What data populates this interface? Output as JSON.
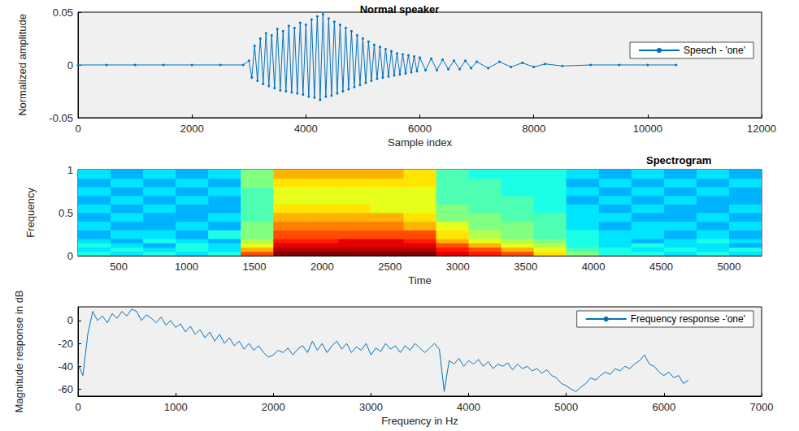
{
  "chart_data": [
    {
      "type": "line",
      "title": "Normal speaker",
      "x_label": "Sample index",
      "y_label": "Normalized amplitude",
      "xlim": [
        0,
        12000
      ],
      "xticks": [
        0,
        2000,
        4000,
        6000,
        8000,
        10000,
        12000
      ],
      "ylim": [
        -0.05,
        0.05
      ],
      "yticks": [
        -0.05,
        0,
        0.05
      ],
      "grid": false,
      "legend": "upper right",
      "series": [
        {
          "name": "Speech - 'one'",
          "color": "#0072bd",
          "marker": "circle",
          "x": [
            0,
            500,
            1000,
            1500,
            2000,
            2500,
            2900,
            3000,
            3050,
            3100,
            3150,
            3200,
            3250,
            3300,
            3350,
            3400,
            3450,
            3500,
            3550,
            3600,
            3650,
            3700,
            3750,
            3800,
            3850,
            3900,
            3950,
            4000,
            4050,
            4100,
            4150,
            4200,
            4250,
            4300,
            4350,
            4400,
            4450,
            4500,
            4550,
            4600,
            4650,
            4700,
            4750,
            4800,
            4850,
            4900,
            4950,
            5000,
            5050,
            5100,
            5150,
            5200,
            5250,
            5300,
            5350,
            5400,
            5450,
            5500,
            5550,
            5600,
            5650,
            5700,
            5750,
            5800,
            5850,
            5900,
            5950,
            6000,
            6100,
            6200,
            6300,
            6400,
            6500,
            6600,
            6700,
            6800,
            6900,
            7000,
            7200,
            7400,
            7600,
            7800,
            8000,
            8200,
            8500,
            9000,
            9500,
            10000,
            10500
          ],
          "values": [
            0,
            0,
            0,
            0,
            0,
            0,
            0,
            0.004,
            -0.012,
            0.018,
            -0.015,
            0.025,
            -0.018,
            0.03,
            -0.02,
            0.028,
            -0.022,
            0.034,
            -0.024,
            0.032,
            -0.025,
            0.037,
            -0.026,
            0.035,
            -0.027,
            0.04,
            -0.028,
            0.038,
            -0.03,
            0.043,
            -0.031,
            0.046,
            -0.033,
            0.048,
            -0.03,
            0.044,
            -0.029,
            0.041,
            -0.027,
            0.038,
            -0.025,
            0.035,
            -0.023,
            0.032,
            -0.021,
            0.028,
            -0.019,
            0.025,
            -0.017,
            0.022,
            -0.015,
            0.019,
            -0.013,
            0.017,
            -0.012,
            0.015,
            -0.011,
            0.013,
            -0.01,
            0.011,
            -0.009,
            0.01,
            -0.008,
            0.009,
            -0.007,
            0.008,
            -0.006,
            0.007,
            -0.005,
            0.006,
            -0.005,
            0.005,
            -0.004,
            0.004,
            -0.004,
            0.004,
            -0.003,
            0.003,
            -0.003,
            0.003,
            -0.002,
            0.002,
            -0.002,
            0.001,
            -0.001,
            0,
            0,
            0,
            0
          ]
        }
      ]
    },
    {
      "type": "heatmap",
      "title": "Spectrogram",
      "x_label": "Time",
      "y_label": "Frequency",
      "xlim": [
        200,
        5240
      ],
      "xticks": [
        500,
        1000,
        1500,
        2000,
        2500,
        3000,
        3500,
        4000,
        4500,
        5000
      ],
      "ylim": [
        0,
        1
      ],
      "yticks": [
        0,
        0.5,
        1
      ],
      "time_edges": [
        200,
        440,
        680,
        920,
        1160,
        1400,
        1640,
        1880,
        2120,
        2360,
        2600,
        2840,
        3080,
        3320,
        3560,
        3800,
        4040,
        4280,
        4520,
        4760,
        5000,
        5240
      ],
      "frequency_edges": [
        0,
        0.05,
        0.1,
        0.15,
        0.2,
        0.3,
        0.4,
        0.5,
        0.6,
        0.7,
        0.8,
        0.9,
        1
      ],
      "color_range": [
        0,
        10
      ],
      "cells": [
        [
          4,
          3.5,
          4,
          3.5,
          4,
          8,
          10,
          10,
          10,
          10,
          10,
          9,
          8.5,
          8,
          6.5,
          5,
          4,
          4,
          3.5,
          4,
          3.5
        ],
        [
          3.5,
          4,
          3.5,
          4,
          3.5,
          7,
          9.5,
          9.5,
          9.5,
          9.5,
          9.5,
          8.5,
          8,
          7,
          6,
          4.5,
          4,
          3.5,
          4,
          3.5,
          4
        ],
        [
          4,
          3.5,
          3,
          4,
          3.5,
          6,
          9,
          9,
          9,
          9,
          9,
          8,
          7,
          6,
          5.5,
          4,
          3.5,
          4,
          3.5,
          3.5,
          3
        ],
        [
          3.5,
          3,
          4,
          3.5,
          3,
          5.5,
          8.5,
          8.5,
          9,
          9,
          8.5,
          7,
          6,
          5.5,
          5,
          4,
          3.5,
          3,
          3.5,
          4,
          3.5
        ],
        [
          3,
          3.5,
          3.5,
          3,
          4,
          5,
          8,
          8,
          8,
          8,
          8,
          6.5,
          5.5,
          5,
          4.5,
          4,
          3.5,
          3.5,
          3,
          3.5,
          3
        ],
        [
          3.5,
          3,
          3,
          3.5,
          3,
          5,
          7.5,
          7.5,
          7.5,
          7.5,
          7,
          6,
          5,
          5,
          4.5,
          3.5,
          3,
          3.5,
          3.5,
          3,
          3.5
        ],
        [
          3,
          3.5,
          3,
          3,
          3.5,
          4.5,
          7,
          7,
          7,
          7,
          6.5,
          5,
          5,
          4.5,
          4.5,
          3.5,
          3.5,
          3,
          3,
          3.5,
          3
        ],
        [
          3.5,
          3,
          3.5,
          3,
          3,
          4.5,
          6.5,
          6.5,
          6.5,
          6,
          6,
          5,
          4.5,
          4.5,
          4,
          3.5,
          3,
          3.5,
          3,
          3,
          3.5
        ],
        [
          3,
          3.5,
          3,
          3.5,
          3,
          4.5,
          6,
          6,
          6,
          6,
          6,
          4.5,
          4.5,
          4.5,
          4,
          3,
          3.5,
          3,
          3.5,
          3,
          3
        ],
        [
          3.5,
          3,
          3.5,
          3,
          3.5,
          4.5,
          6,
          6,
          6,
          6,
          6,
          4.5,
          4.5,
          4,
          4,
          3.5,
          3,
          3.5,
          3,
          3.5,
          3
        ],
        [
          3,
          3.5,
          3,
          3.5,
          3,
          5,
          6.5,
          6.5,
          6.5,
          6.5,
          6.5,
          4.5,
          4.5,
          4,
          4,
          3,
          3.5,
          3,
          3.5,
          3,
          3.5
        ],
        [
          3.5,
          3,
          3.5,
          3,
          3.5,
          5,
          7,
          7,
          7,
          7,
          6.5,
          4.5,
          4,
          4,
          4,
          3.5,
          3,
          3.5,
          3,
          3.5,
          3
        ]
      ]
    },
    {
      "type": "line",
      "x_label": "Frequency in Hz",
      "y_label": "Magnitude response in dB",
      "xlim": [
        0,
        7000
      ],
      "xticks": [
        0,
        1000,
        2000,
        3000,
        4000,
        5000,
        6000,
        7000
      ],
      "ylim": [
        -66,
        12
      ],
      "yticks": [
        -60,
        -40,
        -20,
        0
      ],
      "grid": false,
      "legend": "upper right",
      "series": [
        {
          "name": "Frequency response -'one'",
          "color": "#0072bd",
          "x": [
            0,
            50,
            100,
            150,
            200,
            250,
            300,
            350,
            400,
            450,
            500,
            550,
            600,
            650,
            700,
            750,
            800,
            850,
            900,
            950,
            1000,
            1050,
            1100,
            1150,
            1200,
            1250,
            1300,
            1350,
            1400,
            1450,
            1500,
            1550,
            1600,
            1650,
            1700,
            1750,
            1800,
            1850,
            1900,
            1950,
            2000,
            2050,
            2100,
            2150,
            2200,
            2250,
            2300,
            2350,
            2400,
            2450,
            2500,
            2550,
            2600,
            2650,
            2700,
            2750,
            2800,
            2850,
            2900,
            2950,
            3000,
            3050,
            3100,
            3150,
            3200,
            3250,
            3300,
            3350,
            3400,
            3450,
            3500,
            3550,
            3600,
            3650,
            3700,
            3750,
            3800,
            3850,
            3900,
            3950,
            4000,
            4050,
            4100,
            4150,
            4200,
            4250,
            4300,
            4350,
            4400,
            4450,
            4500,
            4550,
            4600,
            4650,
            4700,
            4750,
            4800,
            4850,
            4900,
            4950,
            5000,
            5050,
            5100,
            5150,
            5200,
            5250,
            5300,
            5350,
            5400,
            5450,
            5500,
            5550,
            5600,
            5650,
            5700,
            5750,
            5800,
            5850,
            5900,
            5950,
            6000,
            6050,
            6100,
            6150,
            6200,
            6250
          ],
          "values": [
            -38,
            -48,
            -12,
            8,
            0,
            4,
            -2,
            6,
            2,
            8,
            4,
            10,
            8,
            0,
            5,
            2,
            -2,
            3,
            -4,
            0,
            -6,
            -3,
            -10,
            -5,
            -12,
            -8,
            -15,
            -10,
            -18,
            -12,
            -20,
            -15,
            -22,
            -18,
            -25,
            -20,
            -26,
            -22,
            -28,
            -32,
            -30,
            -26,
            -28,
            -24,
            -30,
            -25,
            -22,
            -28,
            -18,
            -26,
            -20,
            -28,
            -22,
            -18,
            -25,
            -20,
            -28,
            -23,
            -26,
            -20,
            -30,
            -24,
            -27,
            -20,
            -25,
            -22,
            -28,
            -22,
            -26,
            -20,
            -24,
            -28,
            -24,
            -20,
            -25,
            -62,
            -35,
            -38,
            -33,
            -40,
            -35,
            -38,
            -34,
            -40,
            -36,
            -42,
            -38,
            -40,
            -37,
            -43,
            -38,
            -42,
            -40,
            -44,
            -42,
            -46,
            -43,
            -48,
            -50,
            -55,
            -57,
            -60,
            -62,
            -58,
            -55,
            -50,
            -52,
            -48,
            -45,
            -47,
            -42,
            -44,
            -40,
            -42,
            -38,
            -35,
            -30,
            -38,
            -40,
            -45,
            -48,
            -45,
            -50,
            -48,
            -55,
            -52
          ]
        }
      ]
    }
  ]
}
